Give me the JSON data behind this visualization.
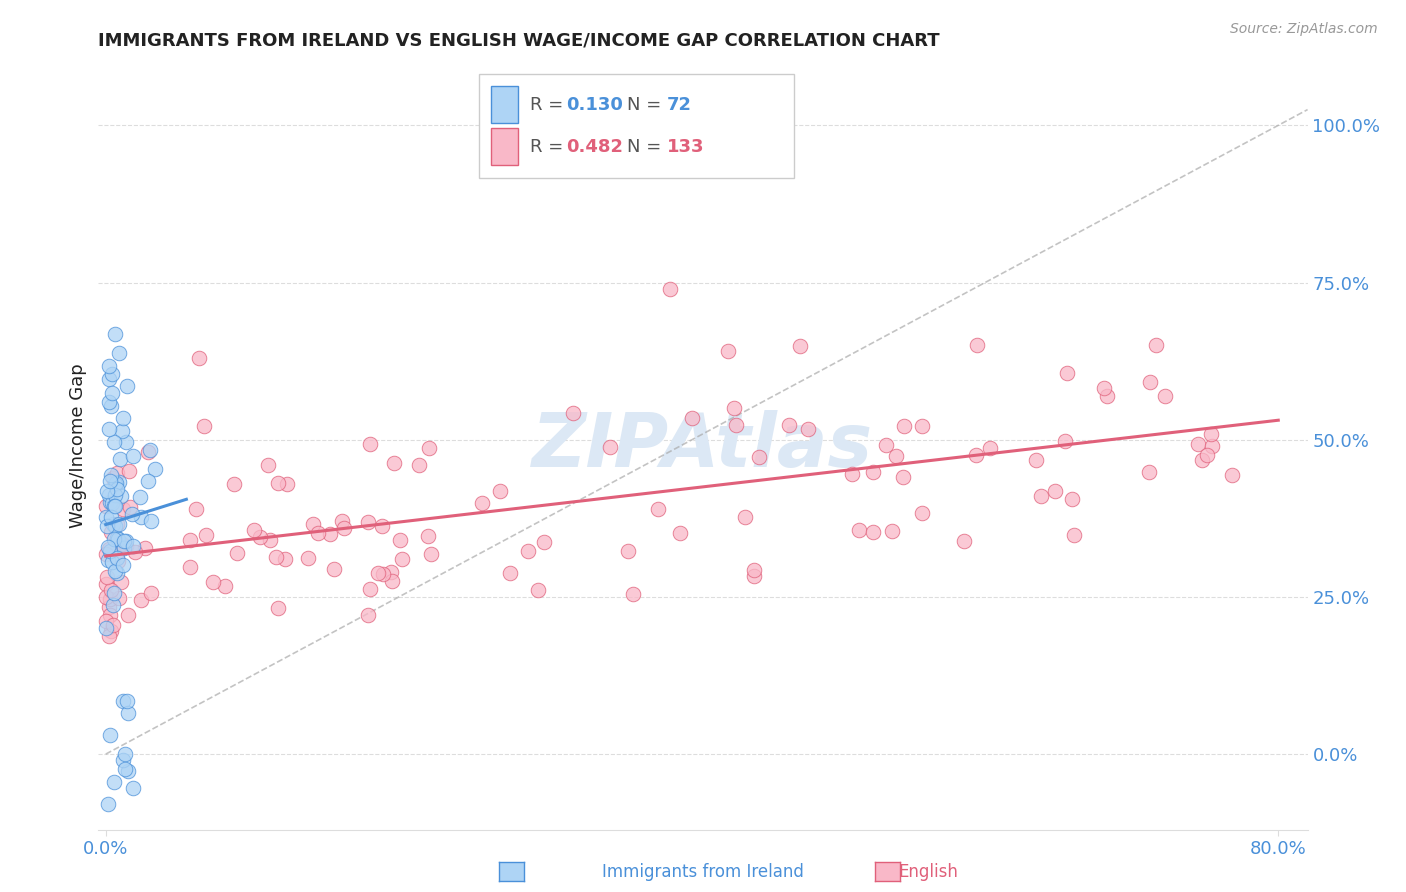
{
  "title": "IMMIGRANTS FROM IRELAND VS ENGLISH WAGE/INCOME GAP CORRELATION CHART",
  "source": "Source: ZipAtlas.com",
  "ylabel": "Wage/Income Gap",
  "legend_blue_R": "0.130",
  "legend_blue_N": "72",
  "legend_pink_R": "0.482",
  "legend_pink_N": "133",
  "blue_fill_color": "#aed4f5",
  "pink_fill_color": "#f9b8c8",
  "blue_line_color": "#4a90d9",
  "pink_line_color": "#e0607a",
  "title_color": "#222222",
  "axis_label_color": "#4a90d9",
  "watermark_color": "#dce8f5",
  "background_color": "#ffffff",
  "grid_color": "#dddddd",
  "xlim": [
    -0.005,
    0.82
  ],
  "ylim": [
    -0.12,
    1.1
  ],
  "ytick_vals": [
    0.0,
    0.25,
    0.5,
    0.75,
    1.0
  ],
  "ytick_labels": [
    "0.0%",
    "25.0%",
    "50.0%",
    "75.0%",
    "100.0%"
  ],
  "xtick_vals": [
    0.0,
    0.8
  ],
  "xtick_labels": [
    "0.0%",
    "80.0%"
  ]
}
